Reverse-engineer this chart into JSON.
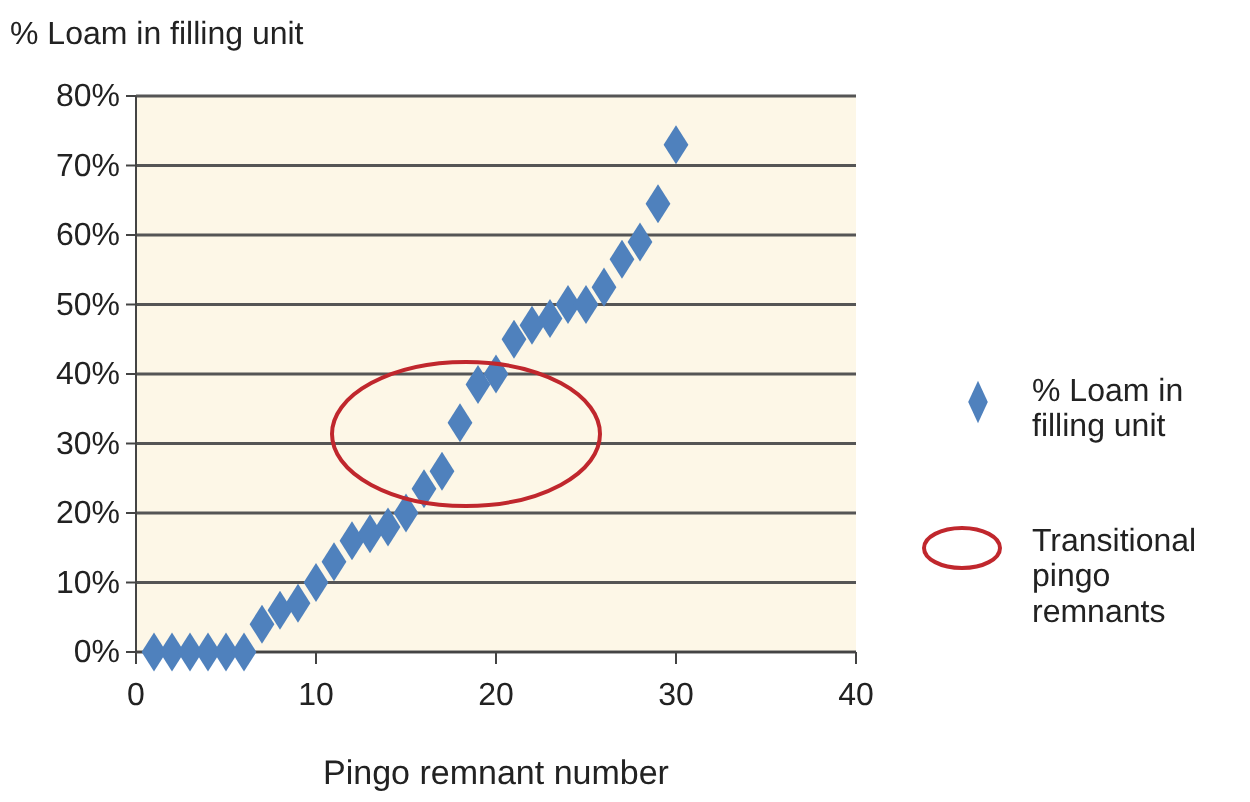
{
  "chart_data": {
    "type": "scatter",
    "ylabel": "% Loam in filling unit",
    "xlabel": "Pingo remnant number",
    "xlim": [
      0,
      40
    ],
    "xticks": [
      0,
      10,
      20,
      30,
      40
    ],
    "ylim": [
      0,
      80
    ],
    "yticks": [
      {
        "value": 0,
        "label": "0%"
      },
      {
        "value": 10,
        "label": "10%"
      },
      {
        "value": 20,
        "label": "20%"
      },
      {
        "value": 30,
        "label": "30%"
      },
      {
        "value": 40,
        "label": "40%"
      },
      {
        "value": 50,
        "label": "50%"
      },
      {
        "value": 60,
        "label": "60%"
      },
      {
        "value": 70,
        "label": "70%"
      },
      {
        "value": 80,
        "label": "80%"
      }
    ],
    "grid": "y",
    "legend": "right",
    "marker": "diamond",
    "series": [
      {
        "name": "% Loam in filling unit",
        "color": "#4f81bd",
        "x": [
          1,
          2,
          3,
          4,
          5,
          6,
          7,
          8,
          9,
          10,
          11,
          12,
          13,
          14,
          15,
          16,
          17,
          18,
          19,
          20,
          21,
          22,
          23,
          24,
          25,
          26,
          27,
          28,
          29,
          30
        ],
        "values": [
          0,
          0,
          0,
          0,
          0,
          0,
          4,
          6,
          7,
          10,
          13,
          16,
          17,
          18,
          20,
          23.5,
          26,
          33,
          38.5,
          40,
          45,
          47,
          48,
          50,
          50,
          52.5,
          56.5,
          59,
          64.5,
          73
        ]
      }
    ],
    "annotations": [
      "Transitional pingo remnants"
    ]
  }
}
